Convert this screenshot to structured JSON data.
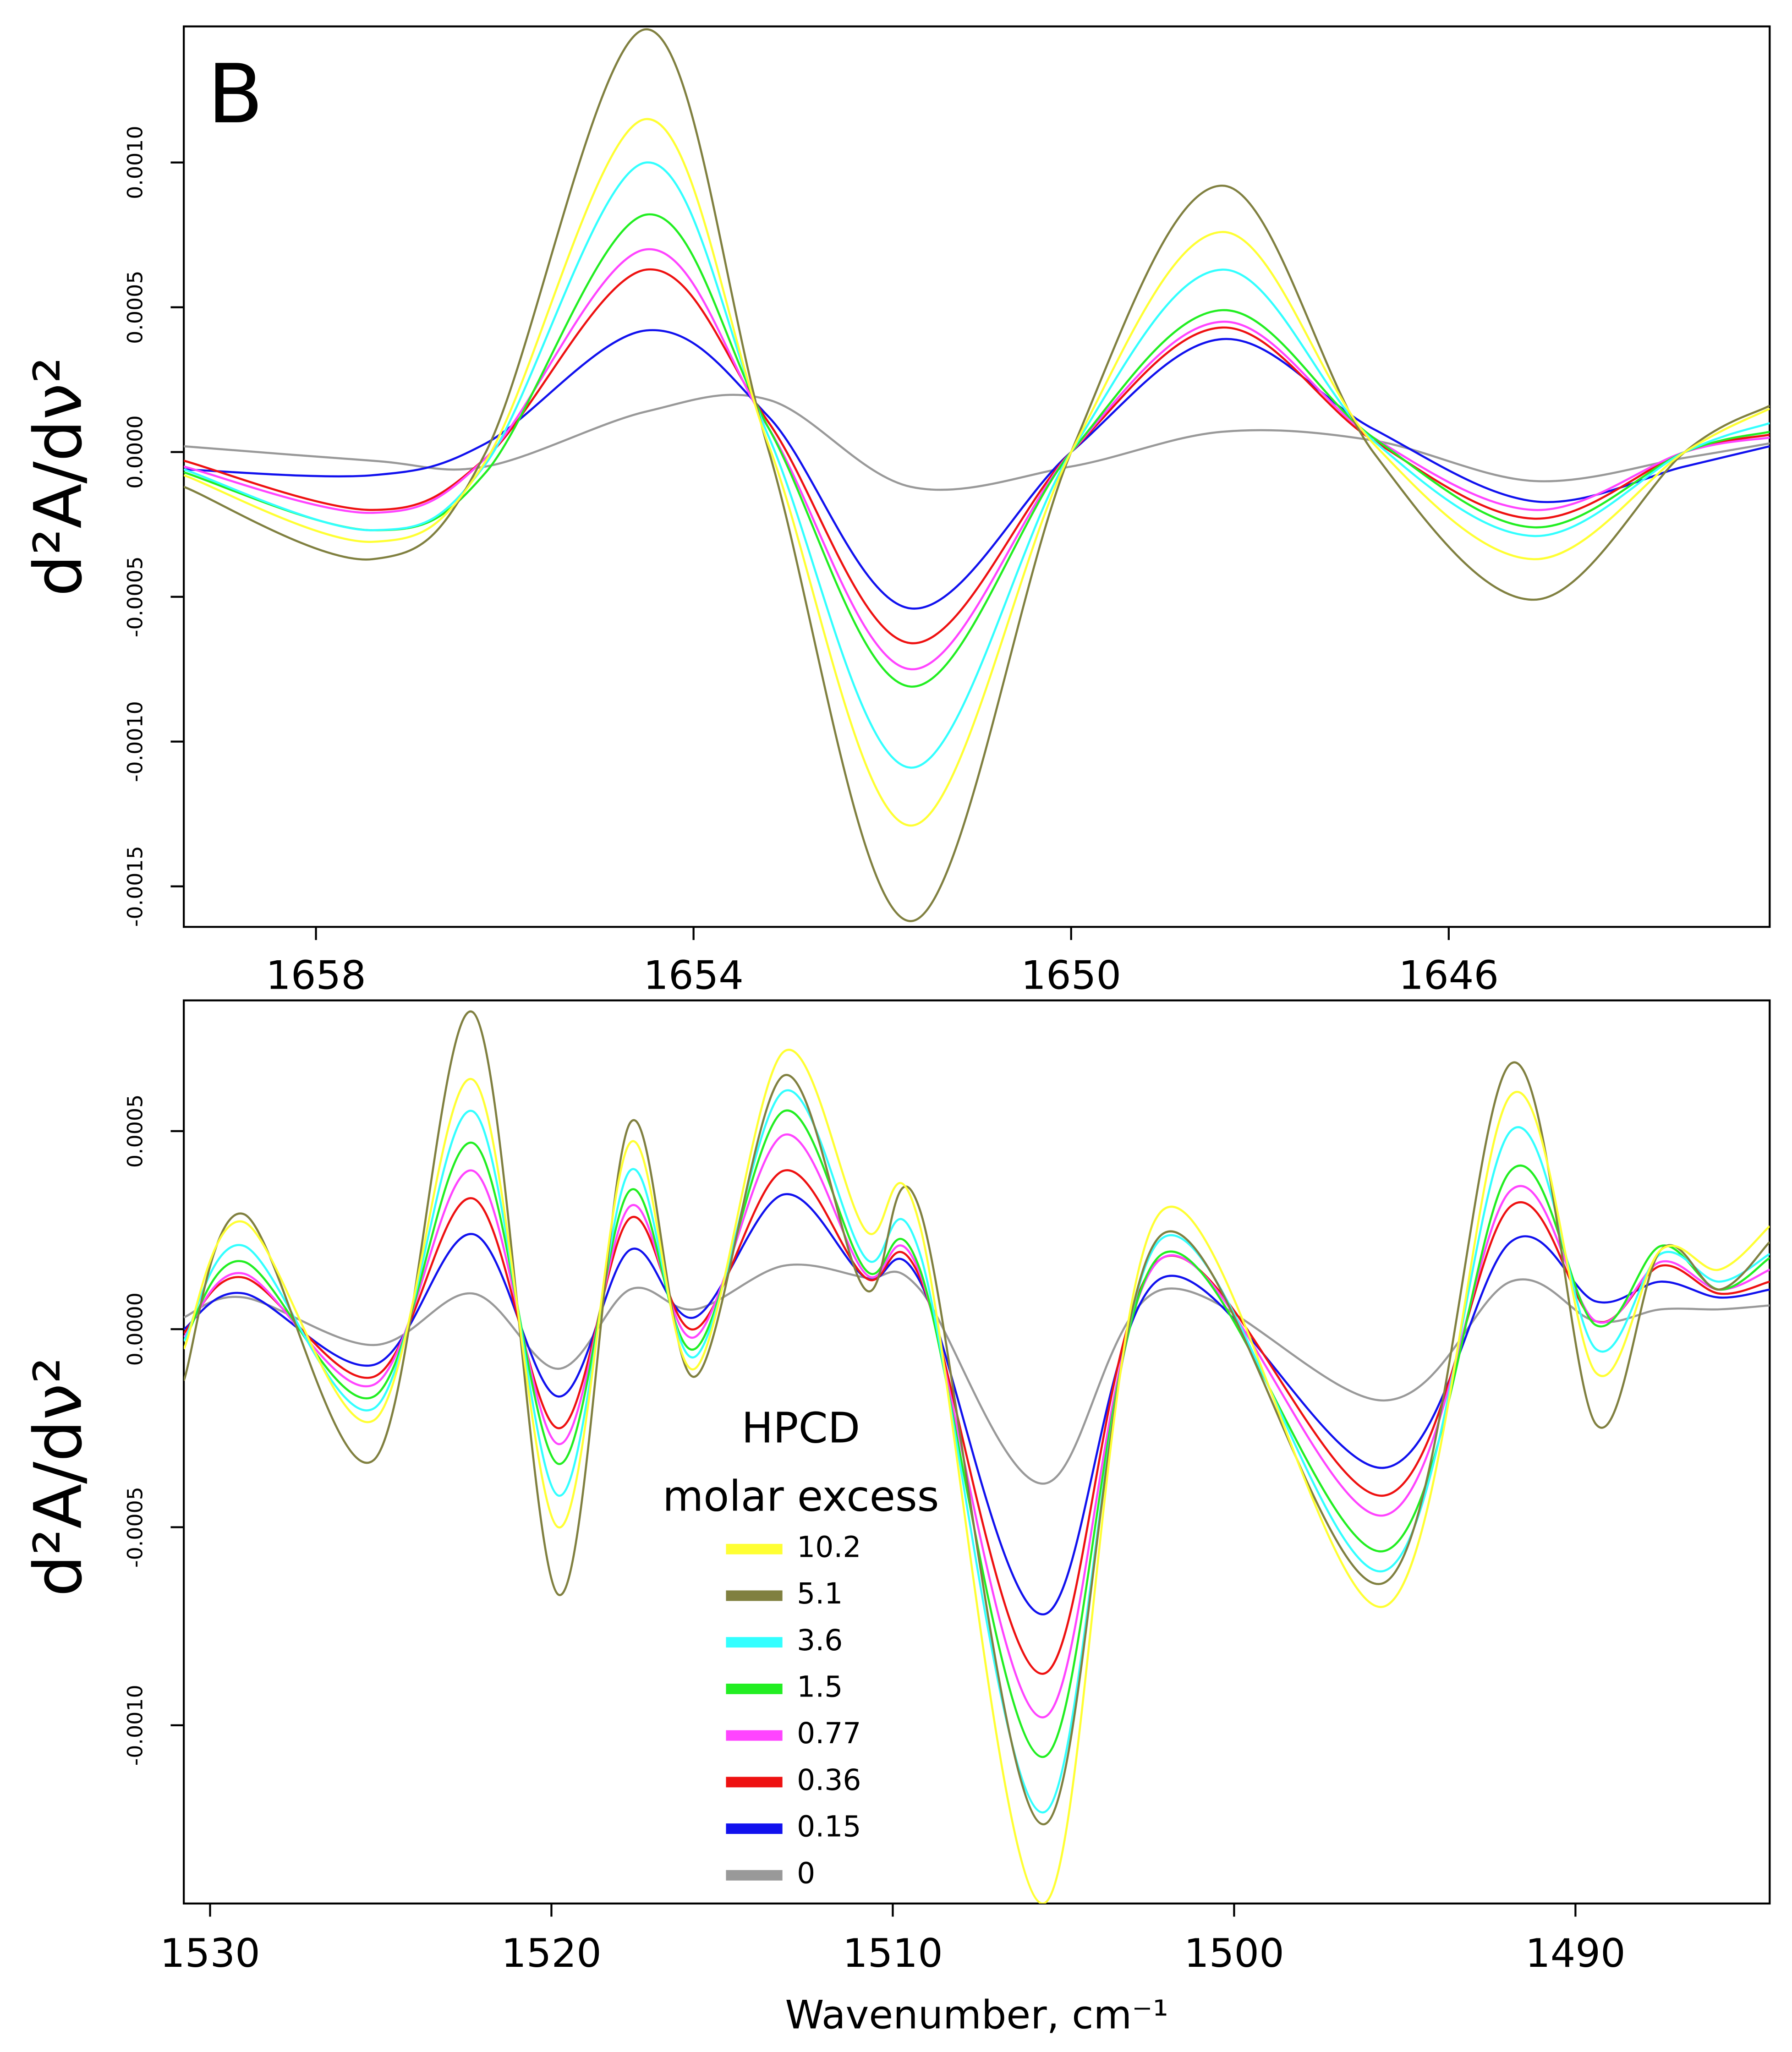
{
  "chart_data": [
    {
      "type": "line",
      "panel_label": "B",
      "y_label": "d²A/dν²",
      "x": [
        1659.4,
        1657.4,
        1656.2,
        1654.5,
        1653.2,
        1651.7,
        1650,
        1648.4,
        1646.8,
        1645.1,
        1643.5,
        1642.6
      ],
      "xlim": [
        1659.4,
        1642.6
      ],
      "xticks": [
        1658,
        1654,
        1650,
        1646
      ],
      "ylim": [
        -0.00164,
        0.00147
      ],
      "yticks": [
        {
          "value": -0.0015,
          "label": "-0.0015"
        },
        {
          "value": -0.001,
          "label": "-0.0010"
        },
        {
          "value": -0.0005,
          "label": "-0.0005"
        },
        {
          "value": 0,
          "label": "0.0000"
        },
        {
          "value": 0.0005,
          "label": "0.0005"
        },
        {
          "value": 0.001,
          "label": "0.0010"
        }
      ],
      "series": [
        {
          "color": "#ffff33",
          "values": [
            -8e-05,
            -0.00031,
            -3e-05,
            0.00115,
            2e-05,
            -0.00129,
            0.0,
            0.00076,
            3e-05,
            -0.00037,
            0.0,
            0.00015
          ]
        },
        {
          "color": "#808040",
          "values": [
            -0.00012,
            -0.00037,
            0.0,
            0.00146,
            0.0,
            -0.00162,
            0.0,
            0.00092,
            0.0,
            -0.00051,
            0.0,
            0.00016
          ]
        },
        {
          "color": "#33ffff",
          "values": [
            -6e-05,
            -0.00027,
            -4e-05,
            0.001,
            5e-05,
            -0.00109,
            0.0,
            0.00063,
            4e-05,
            -0.00029,
            0.0,
            0.0001
          ]
        },
        {
          "color": "#22ee22",
          "values": [
            -7e-05,
            -0.00027,
            -7e-05,
            0.00082,
            8e-05,
            -0.00081,
            0.0,
            0.00049,
            5e-05,
            -0.00026,
            0.0,
            7e-05
          ]
        },
        {
          "color": "#ff44ff",
          "values": [
            -5e-05,
            -0.00021,
            -2e-05,
            0.0007,
            8e-05,
            -0.00075,
            0.0,
            0.00045,
            5e-05,
            -0.0002,
            0.0,
            5e-05
          ]
        },
        {
          "color": "#ee1111",
          "values": [
            -3e-05,
            -0.0002,
            -2e-05,
            0.00063,
            0.0001,
            -0.00066,
            0.0,
            0.00043,
            4e-05,
            -0.00023,
            0.0,
            6e-05
          ]
        },
        {
          "color": "#1111ee",
          "values": [
            -6e-05,
            -8e-05,
            3e-05,
            0.00042,
            0.00012,
            -0.00054,
            0.0,
            0.00039,
            8e-05,
            -0.00017,
            -5e-05,
            2e-05
          ]
        },
        {
          "color": "#999999",
          "values": [
            2e-05,
            -3e-05,
            -5e-05,
            0.00014,
            0.00018,
            -0.00012,
            -5e-05,
            7e-05,
            4e-05,
            -0.0001,
            -2e-05,
            3e-05
          ]
        }
      ]
    },
    {
      "type": "line",
      "y_label": "d²A/dν²",
      "x_label": "Wavenumber, cm⁻¹",
      "legend_title": "HPCD",
      "legend_subtitle": "molar excess",
      "x": [
        1530.77,
        1529,
        1525.2,
        1522.3,
        1519.8,
        1517.7,
        1515.8,
        1513.2,
        1510.8,
        1509.2,
        1505.6,
        1502.1,
        1495.6,
        1491.9,
        1489.4,
        1487.5,
        1485.8,
        1484.31
      ],
      "xlim": [
        1530.77,
        1484.31
      ],
      "xticks": [
        1530,
        1520,
        1510,
        1500,
        1490
      ],
      "ylim": [
        -0.00145,
        0.00083
      ],
      "yticks": [
        {
          "value": -0.001,
          "label": "-0.0010"
        },
        {
          "value": -0.0005,
          "label": "-0.0005"
        },
        {
          "value": 0,
          "label": "0.0000"
        },
        {
          "value": 0.0005,
          "label": "0.0005"
        }
      ],
      "series": [
        {
          "name": "10.2",
          "color": "#ffff33",
          "values": [
            -5e-05,
            0.00027,
            -0.00023,
            0.00063,
            -0.0005,
            0.00047,
            -0.0001,
            0.0007,
            0.00025,
            0.00026,
            -0.00145,
            0.0003,
            -0.0007,
            0.00059,
            -0.00011,
            0.0002,
            0.00015,
            0.00026
          ]
        },
        {
          "name": "5.1",
          "color": "#808040",
          "values": [
            -0.00013,
            0.00029,
            -0.00033,
            0.0008,
            -0.00067,
            0.00052,
            -0.00012,
            0.00064,
            0.0001,
            0.0003,
            -0.00125,
            0.00024,
            -0.00064,
            0.00067,
            -0.00024,
            0.0002,
            0.0001,
            0.00022
          ]
        },
        {
          "name": "3.6",
          "color": "#33ffff",
          "values": [
            -3e-05,
            0.00021,
            -0.0002,
            0.00055,
            -0.00042,
            0.0004,
            -7e-05,
            0.0006,
            0.00018,
            0.00019,
            -0.00122,
            0.00023,
            -0.00061,
            0.0005,
            -5e-05,
            0.00019,
            0.00012,
            0.00019
          ]
        },
        {
          "name": "1.5",
          "color": "#22ee22",
          "values": [
            -3e-05,
            0.00017,
            -0.00017,
            0.00047,
            -0.00034,
            0.00035,
            -5e-05,
            0.00055,
            0.00015,
            0.00015,
            -0.00108,
            0.00019,
            -0.00056,
            0.0004,
            1e-05,
            0.00021,
            0.0001,
            0.00018
          ]
        },
        {
          "name": "0.77",
          "color": "#ff44ff",
          "values": [
            -2e-05,
            0.00014,
            -0.00014,
            0.0004,
            -0.00029,
            0.00031,
            -2e-05,
            0.00049,
            0.00014,
            0.00014,
            -0.00098,
            0.00018,
            -0.00047,
            0.00035,
            2e-05,
            0.00017,
            0.0001,
            0.00015
          ]
        },
        {
          "name": "0.36",
          "color": "#ee1111",
          "values": [
            -1e-05,
            0.00013,
            -0.00012,
            0.00033,
            -0.00025,
            0.00028,
            0.0,
            0.0004,
            0.00013,
            0.00013,
            -0.00087,
            0.00018,
            -0.00042,
            0.00031,
            2e-05,
            0.00016,
            9e-05,
            0.00012
          ]
        },
        {
          "name": "0.15",
          "color": "#1111ee",
          "values": [
            0.0,
            9e-05,
            -9e-05,
            0.00024,
            -0.00017,
            0.0002,
            3e-05,
            0.00034,
            0.00013,
            0.00012,
            -0.00072,
            0.00013,
            -0.00035,
            0.00022,
            7e-05,
            0.00012,
            8e-05,
            0.0001
          ]
        },
        {
          "name": "0",
          "color": "#999999",
          "values": [
            3e-05,
            8e-05,
            -4e-05,
            9e-05,
            -0.0001,
            0.0001,
            5e-05,
            0.00016,
            0.00013,
            0.0001,
            -0.00039,
            0.0001,
            -0.00018,
            0.00012,
            2e-05,
            5e-05,
            5e-05,
            6e-05
          ]
        }
      ]
    }
  ]
}
